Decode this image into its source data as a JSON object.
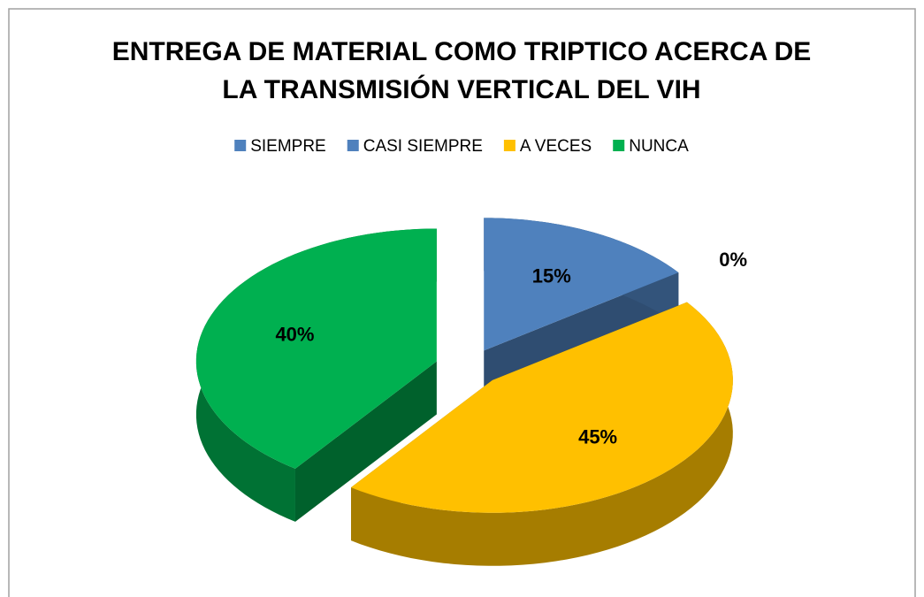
{
  "chart_data": {
    "type": "pie3d",
    "title": [
      "ENTREGA DE MATERIAL COMO TRIPTICO ACERCA DE",
      "LA TRANSMISIÓN VERTICAL DEL VIH"
    ],
    "categories": [
      "SIEMPRE",
      "CASI SIEMPRE",
      "A VECES",
      "NUNCA"
    ],
    "values": [
      15,
      0,
      45,
      40
    ],
    "value_labels": [
      "15%",
      "0%",
      "45%",
      "40%"
    ],
    "colors": [
      "#4f81bd",
      "#4f81bd",
      "#ffc000",
      "#00b050"
    ],
    "legend": "top"
  }
}
